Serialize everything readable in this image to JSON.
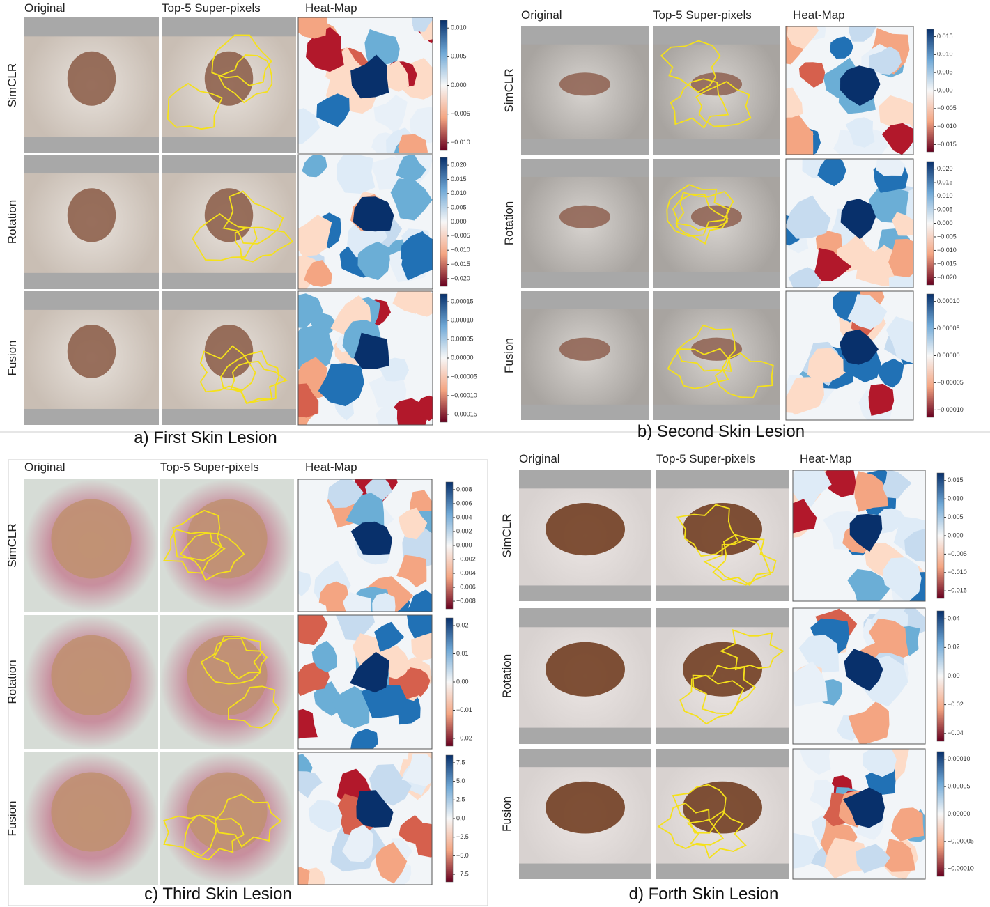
{
  "panels": [
    {
      "caption": "a) First Skin Lesion",
      "headers": [
        "Original",
        "Top-5 Super-pixels",
        "Heat-Map"
      ],
      "rows": [
        {
          "label": "SimCLR",
          "ticks": [
            "0.010",
            "0.005",
            "0.000",
            "−0.005",
            "−0.010"
          ]
        },
        {
          "label": "Rotation",
          "ticks": [
            "0.020",
            "0.015",
            "0.010",
            "0.005",
            "0.000",
            "−0.005",
            "−0.010",
            "−0.015",
            "−0.020"
          ]
        },
        {
          "label": "Fusion",
          "ticks": [
            "0.00015",
            "0.00010",
            "0.00005",
            "0.00000",
            "−0.00005",
            "−0.00010",
            "−0.00015"
          ]
        }
      ]
    },
    {
      "caption": "b) Second Skin Lesion",
      "headers": [
        "Original",
        "Top-5 Super-pixels",
        "Heat-Map"
      ],
      "rows": [
        {
          "label": "SimCLR",
          "ticks": [
            "0.015",
            "0.010",
            "0.005",
            "0.000",
            "−0.005",
            "−0.010",
            "−0.015"
          ]
        },
        {
          "label": "Rotation",
          "ticks": [
            "0.020",
            "0.015",
            "0.010",
            "0.005",
            "0.000",
            "−0.005",
            "−0.010",
            "−0.015",
            "−0.020"
          ]
        },
        {
          "label": "Fusion",
          "ticks": [
            "0.00010",
            "0.00005",
            "0.00000",
            "−0.00005",
            "−0.00010"
          ]
        }
      ]
    },
    {
      "caption": "c) Third Skin Lesion",
      "headers": [
        "Original",
        "Top-5 Super-pixels",
        "Heat-Map"
      ],
      "rows": [
        {
          "label": "SimCLR",
          "ticks": [
            "0.008",
            "0.006",
            "0.004",
            "0.002",
            "0.000",
            "−0.002",
            "−0.004",
            "−0.006",
            "−0.008"
          ]
        },
        {
          "label": "Rotation",
          "ticks": [
            "0.02",
            "0.01",
            "0.00",
            "−0.01",
            "−0.02"
          ]
        },
        {
          "label": "Fusion",
          "ticks": [
            "7.5",
            "5.0",
            "2.5",
            "0.0",
            "−2.5",
            "−5.0",
            "−7.5"
          ]
        }
      ]
    },
    {
      "caption": "d) Forth Skin Lesion",
      "headers": [
        "Original",
        "Top-5 Super-pixels",
        "Heat-Map"
      ],
      "rows": [
        {
          "label": "SimCLR",
          "ticks": [
            "0.015",
            "0.010",
            "0.005",
            "0.000",
            "−0.005",
            "−0.010",
            "−0.015"
          ]
        },
        {
          "label": "Rotation",
          "ticks": [
            "0.04",
            "0.02",
            "0.00",
            "−0.02",
            "−0.04"
          ]
        },
        {
          "label": "Fusion",
          "ticks": [
            "0.00010",
            "0.00005",
            "0.00000",
            "−0.00005",
            "−0.00010"
          ]
        }
      ]
    }
  ]
}
